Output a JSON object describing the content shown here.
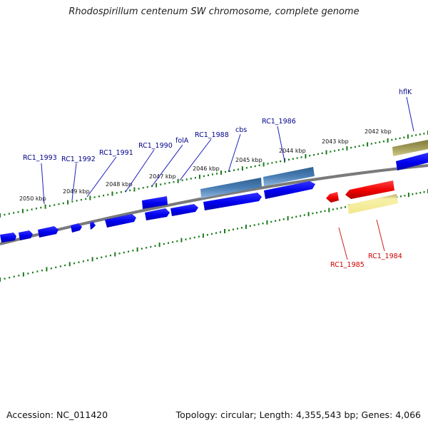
{
  "title": "Rhodospirillum centenum SW chromosome, complete genome",
  "footer": {
    "accession": "Accession: NC_011420",
    "summary": "Topology: circular; Length: 4,355,543 bp; Genes: 4,066"
  },
  "kbp_labels": [
    "2050 kbp",
    "2049 kbp",
    "2048 kbp",
    "2047 kbp",
    "2046 kbp",
    "2045 kbp",
    "2044 kbp",
    "2043 kbp",
    "2042 kbp"
  ],
  "gene_labels": {
    "plus": [
      "RC1_1993",
      "RC1_1992",
      "RC1_1991",
      "RC1_1990",
      "folA",
      "RC1_1988",
      "cbs",
      "RC1_1986",
      "hflK"
    ],
    "minus": [
      "RC1_1985",
      "RC1_1984"
    ]
  },
  "colors": {
    "plus_label": "#00008B",
    "minus_label": "#CC0000",
    "tick": "#1a7a1a",
    "gene_blue": "#0000EE",
    "gene_steel": "#4a7fb5",
    "gene_red": "#EE0000",
    "gene_yellow": "#f4ec9c",
    "gene_olive": "#9a9452",
    "backbone": "#808080"
  }
}
